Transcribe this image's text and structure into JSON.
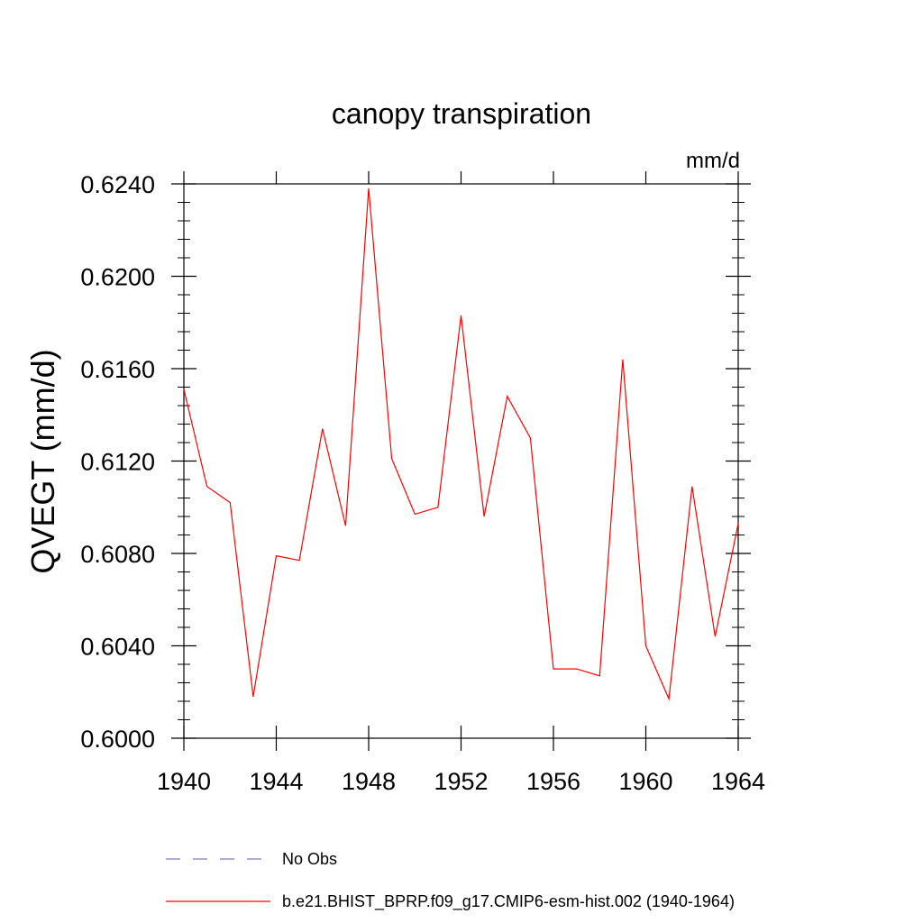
{
  "chart_data": {
    "type": "line",
    "title": "canopy transpiration",
    "units": "mm/d",
    "ylabel": "QVEGT  (mm/d)",
    "xlabel": "",
    "xlim": [
      1940,
      1964
    ],
    "ylim": [
      0.6,
      0.624
    ],
    "x_ticks": [
      1940,
      1944,
      1948,
      1952,
      1956,
      1960,
      1964
    ],
    "x_tick_labels": [
      "1940",
      "1944",
      "1948",
      "1952",
      "1956",
      "1960",
      "1964"
    ],
    "y_ticks": [
      0.6,
      0.604,
      0.608,
      0.612,
      0.616,
      0.62,
      0.624
    ],
    "y_tick_labels": [
      "0.6000",
      "0.6040",
      "0.6080",
      "0.6120",
      "0.6160",
      "0.6200",
      "0.6240"
    ],
    "grid": false,
    "legend_position": "bottom",
    "series": [
      {
        "name": "b.e21.BHIST_BPRP.f09_g17.CMIP6-esm-hist.002 (1940-1964)",
        "color": "#ff0000",
        "style": "solid",
        "x": [
          1940,
          1941,
          1942,
          1943,
          1944,
          1945,
          1946,
          1947,
          1948,
          1949,
          1950,
          1951,
          1952,
          1953,
          1954,
          1955,
          1956,
          1957,
          1958,
          1959,
          1960,
          1961,
          1962,
          1963,
          1964
        ],
        "y": [
          0.6151,
          0.6109,
          0.6102,
          0.6018,
          0.6079,
          0.6077,
          0.6134,
          0.6092,
          0.6238,
          0.6121,
          0.6097,
          0.61,
          0.6183,
          0.6096,
          0.6148,
          0.613,
          0.603,
          0.603,
          0.6027,
          0.6164,
          0.604,
          0.6017,
          0.6109,
          0.6044,
          0.6093
        ]
      }
    ],
    "legend": [
      {
        "label": "No Obs",
        "color": "#8877bb",
        "style": "dashed"
      },
      {
        "label": "b.e21.BHIST_BPRP.f09_g17.CMIP6-esm-hist.002 (1940-1964)",
        "color": "#ff0000",
        "style": "solid"
      }
    ]
  }
}
